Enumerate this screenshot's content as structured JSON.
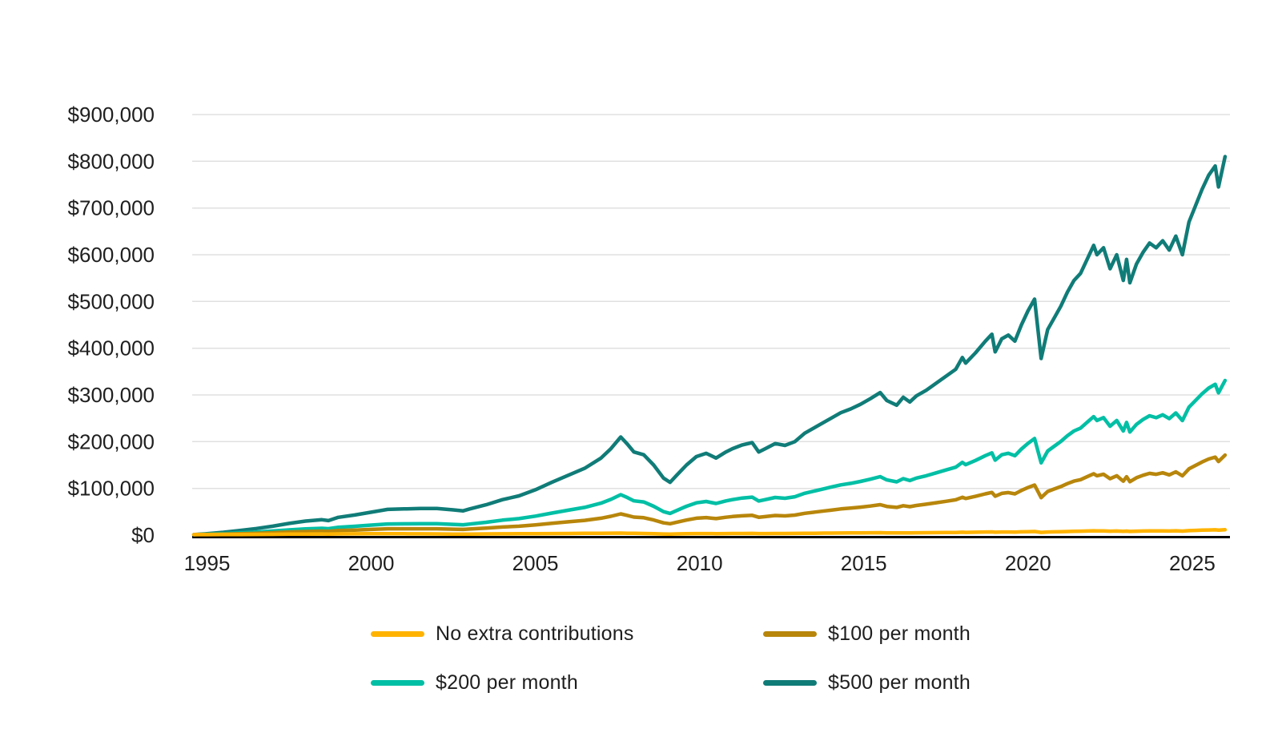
{
  "colors": {
    "background": "#ffffff",
    "gridline": "#e0e0e0",
    "axis": "#000000",
    "text": "#1f1f1f",
    "no_extra": "#ffb300",
    "per_100": "#b8860b",
    "per_200": "#00bfa5",
    "per_500": "#107c78"
  },
  "legend": {
    "position": "bottom",
    "items": [
      {
        "label": "No extra contributions",
        "color": "#ffb300"
      },
      {
        "label": "$100 per month",
        "color": "#b8860b"
      },
      {
        "label": "$200 per month",
        "color": "#00bfa5"
      },
      {
        "label": "$500 per month",
        "color": "#107c78"
      }
    ]
  },
  "chart_data": {
    "type": "line",
    "title": "",
    "xlabel": "",
    "ylabel": "",
    "grid": "horizontal",
    "legend_position": "bottom",
    "x_domain": [
      1994.55,
      2026.1
    ],
    "y_domain": [
      0,
      900000
    ],
    "x_ticks": [
      {
        "value": 1995,
        "label": "1995"
      },
      {
        "value": 2000,
        "label": "2000"
      },
      {
        "value": 2005,
        "label": "2005"
      },
      {
        "value": 2010,
        "label": "2010"
      },
      {
        "value": 2015,
        "label": "2015"
      },
      {
        "value": 2020,
        "label": "2020"
      },
      {
        "value": 2025,
        "label": "2025"
      }
    ],
    "y_ticks": [
      {
        "value": 0,
        "label": "$0"
      },
      {
        "value": 100000,
        "label": "$100,000"
      },
      {
        "value": 200000,
        "label": "$200,000"
      },
      {
        "value": 300000,
        "label": "$300,000"
      },
      {
        "value": 400000,
        "label": "$400,000"
      },
      {
        "value": 500000,
        "label": "$500,000"
      },
      {
        "value": 600000,
        "label": "$600,000"
      },
      {
        "value": 700000,
        "label": "$700,000"
      },
      {
        "value": 800000,
        "label": "$800,000"
      },
      {
        "value": 900000,
        "label": "$900,000"
      }
    ],
    "x": [
      1994.6,
      1995.0,
      1995.5,
      1996.0,
      1996.5,
      1997.0,
      1997.5,
      1998.0,
      1998.5,
      1998.7,
      1999.0,
      1999.5,
      2000.0,
      2000.5,
      2001.0,
      2001.5,
      2002.0,
      2002.5,
      2002.8,
      2003.0,
      2003.5,
      2004.0,
      2004.5,
      2005.0,
      2005.5,
      2006.0,
      2006.5,
      2007.0,
      2007.3,
      2007.6,
      2007.8,
      2008.0,
      2008.3,
      2008.6,
      2008.9,
      2009.1,
      2009.3,
      2009.6,
      2009.9,
      2010.2,
      2010.5,
      2010.8,
      2011.0,
      2011.3,
      2011.6,
      2011.8,
      2012.0,
      2012.3,
      2012.6,
      2012.9,
      2013.2,
      2013.5,
      2013.8,
      2014.0,
      2014.3,
      2014.6,
      2014.9,
      2015.2,
      2015.5,
      2015.7,
      2016.0,
      2016.2,
      2016.4,
      2016.6,
      2016.9,
      2017.2,
      2017.5,
      2017.8,
      2018.0,
      2018.1,
      2018.4,
      2018.7,
      2018.9,
      2019.0,
      2019.2,
      2019.4,
      2019.6,
      2019.8,
      2020.0,
      2020.2,
      2020.4,
      2020.6,
      2020.8,
      2021.0,
      2021.2,
      2021.4,
      2021.6,
      2021.8,
      2022.0,
      2022.1,
      2022.3,
      2022.5,
      2022.7,
      2022.9,
      2023.0,
      2023.1,
      2023.3,
      2023.5,
      2023.7,
      2023.9,
      2024.1,
      2024.3,
      2024.5,
      2024.7,
      2024.9,
      2025.1,
      2025.3,
      2025.5,
      2025.7,
      2025.8,
      2026.0
    ],
    "series": [
      {
        "name": "No extra contributions",
        "color": "#ffb300",
        "values": [
          1000,
          1100,
          1250,
          1400,
          1550,
          1750,
          2050,
          2300,
          2400,
          2200,
          2600,
          2800,
          3000,
          3100,
          2900,
          2750,
          2600,
          2300,
          2100,
          2200,
          2500,
          2750,
          2900,
          3100,
          3300,
          3500,
          3700,
          4000,
          4150,
          4300,
          4000,
          3700,
          3500,
          3000,
          2400,
          2200,
          2500,
          2900,
          3200,
          3300,
          3050,
          3300,
          3400,
          3500,
          3550,
          3200,
          3300,
          3500,
          3400,
          3550,
          3850,
          4000,
          4200,
          4300,
          4500,
          4600,
          4750,
          4900,
          5100,
          4800,
          4600,
          4850,
          4700,
          4900,
          5100,
          5300,
          5500,
          5700,
          6100,
          5900,
          6200,
          6600,
          6800,
          6200,
          6600,
          6700,
          6500,
          7000,
          7400,
          7800,
          5800,
          6700,
          7100,
          7400,
          7800,
          8200,
          8400,
          8800,
          9200,
          8900,
          9100,
          8400,
          8800,
          8000,
          8600,
          7900,
          8400,
          8800,
          9000,
          8900,
          9100,
          8800,
          9200,
          8600,
          9600,
          10100,
          10600,
          11000,
          11300,
          10600,
          11500
        ]
      },
      {
        "name": "$100 per month",
        "color": "#b8860b",
        "values": [
          1000,
          1500,
          2200,
          3100,
          4000,
          5200,
          6600,
          7800,
          8500,
          8000,
          9700,
          10800,
          12200,
          13500,
          13500,
          13600,
          13500,
          12600,
          12100,
          13000,
          15000,
          17400,
          19100,
          21900,
          25200,
          28400,
          31600,
          36200,
          40300,
          45400,
          42200,
          38600,
          37200,
          32400,
          26300,
          24400,
          27600,
          32300,
          36200,
          37600,
          35400,
          38200,
          39700,
          41400,
          42400,
          38200,
          39600,
          42000,
          41100,
          42800,
          46700,
          49200,
          51800,
          53400,
          56000,
          57700,
          59800,
          62300,
          65100,
          61400,
          59300,
          62900,
          60800,
          63500,
          66100,
          69200,
          72400,
          75600,
          80900,
          78300,
          83000,
          88300,
          91400,
          83400,
          89300,
          91000,
          88200,
          95600,
          101900,
          107200,
          80200,
          93400,
          98700,
          103900,
          110200,
          115600,
          118700,
          125000,
          131400,
          127100,
          130300,
          120700,
          127000,
          115400,
          124900,
          114300,
          122700,
          128000,
          132200,
          130100,
          133300,
          129000,
          135400,
          126900,
          141700,
          149100,
          156500,
          162800,
          167000,
          157500,
          171200
        ]
      },
      {
        "name": "$200 per month",
        "color": "#00bfa5",
        "values": [
          1000,
          1900,
          3200,
          4800,
          6500,
          8700,
          11200,
          13400,
          14600,
          13700,
          16800,
          18900,
          21400,
          23900,
          24100,
          24500,
          24400,
          23000,
          22100,
          23700,
          27500,
          32100,
          35300,
          40700,
          47200,
          53300,
          59400,
          68400,
          76500,
          86600,
          80400,
          73400,
          70900,
          61800,
          50200,
          46500,
          52700,
          61700,
          69100,
          72000,
          67800,
          73200,
          76000,
          79300,
          81300,
          73100,
          76000,
          80500,
          78800,
          82100,
          89500,
          94400,
          99300,
          102600,
          107500,
          110800,
          114900,
          119700,
          125100,
          118100,
          114000,
          120900,
          116800,
          122100,
          127100,
          133200,
          139300,
          145400,
          155700,
          150700,
          159700,
          170000,
          176100,
          160500,
          172000,
          175200,
          169900,
          184200,
          196400,
          206700,
          154700,
          180000,
          190300,
          200400,
          212700,
          222900,
          229000,
          241300,
          253500,
          245300,
          251500,
          233000,
          245300,
          222800,
          241200,
          220700,
          237000,
          247300,
          255400,
          251300,
          257500,
          249300,
          261500,
          245200,
          273800,
          288100,
          302400,
          314600,
          322800,
          304400,
          330900
        ]
      },
      {
        "name": "$500 per month",
        "color": "#107c78",
        "values": [
          1000,
          3000,
          6000,
          10000,
          14000,
          19000,
          25000,
          30000,
          33000,
          31000,
          38000,
          43000,
          49000,
          55000,
          56000,
          57000,
          57000,
          54000,
          52000,
          56000,
          65000,
          76000,
          84000,
          97000,
          113000,
          128000,
          143000,
          165000,
          185000,
          210000,
          195000,
          178000,
          172000,
          150000,
          122000,
          113000,
          128000,
          150000,
          168000,
          175000,
          165000,
          178000,
          185000,
          193000,
          198000,
          178000,
          185000,
          196000,
          192000,
          200000,
          218000,
          230000,
          242000,
          250000,
          262000,
          270000,
          280000,
          292000,
          305000,
          288000,
          278000,
          295000,
          285000,
          298000,
          310000,
          325000,
          340000,
          355000,
          380000,
          368000,
          390000,
          415000,
          430000,
          392000,
          420000,
          428000,
          415000,
          450000,
          480000,
          505000,
          378000,
          440000,
          465000,
          490000,
          520000,
          545000,
          560000,
          590000,
          620000,
          600000,
          615000,
          570000,
          600000,
          545000,
          590000,
          540000,
          580000,
          605000,
          625000,
          615000,
          630000,
          610000,
          640000,
          600000,
          670000,
          705000,
          740000,
          770000,
          790000,
          745000,
          810000
        ]
      }
    ]
  }
}
